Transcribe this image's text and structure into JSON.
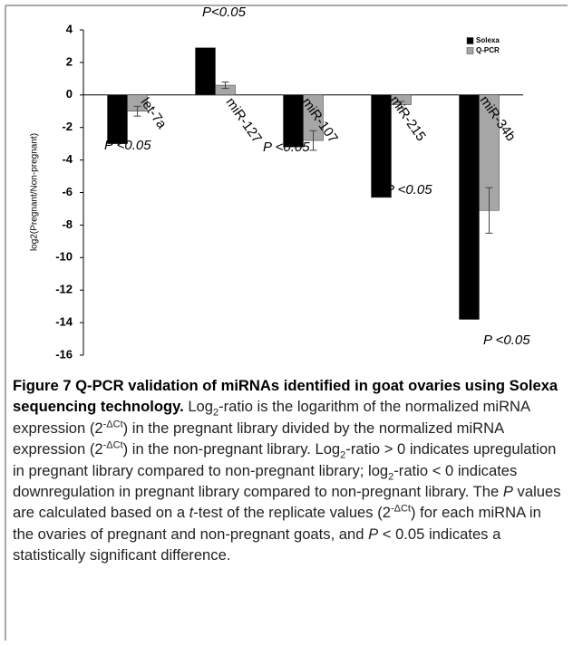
{
  "chart_data": {
    "type": "bar",
    "y_label": "log2(Pregnant/Non-pregnant)",
    "categories": [
      "let-7a",
      "miR-127",
      "miR-107",
      "miR-215",
      "miR-34b"
    ],
    "series": [
      {
        "name": "Solexa",
        "color": "#000000",
        "values": [
          -3,
          2.9,
          -3.2,
          -6.3,
          -13.8
        ]
      },
      {
        "name": "Q-PCR",
        "color": "#a6a6a6",
        "values": [
          -1.0,
          0.6,
          -2.8,
          -0.6,
          -7.1
        ],
        "errors": [
          0.3,
          0.2,
          0.6,
          0.2,
          1.4
        ]
      }
    ],
    "annotations": [
      "P <0.05",
      "P<0.05",
      "P <0.05",
      "P <0.05",
      "P <0.05"
    ],
    "ylim": [
      -16,
      4
    ],
    "yticks": [
      4,
      2,
      0,
      -2,
      -4,
      -6,
      -8,
      -10,
      -12,
      -14,
      -16
    ],
    "legend": "upper right"
  },
  "caption": [
    {
      "text": "Figure 7 Q-PCR validation of miRNAs identified in goat ovaries using Solexa sequencing technology.",
      "style": "b"
    },
    {
      "text": " Log"
    },
    {
      "text": "2",
      "style": "sub"
    },
    {
      "text": "-ratio is the logarithm of the normalized miRNA expression (2"
    },
    {
      "text": "-ΔCt",
      "style": "sup"
    },
    {
      "text": ") in the pregnant library divided by the normalized miRNA expression (2"
    },
    {
      "text": "-ΔCt",
      "style": "sup"
    },
    {
      "text": ") in the non-pregnant library. Log"
    },
    {
      "text": "2",
      "style": "sub"
    },
    {
      "text": "-ratio > 0 indicates upregulation in pregnant library compared to non-pregnant library; log"
    },
    {
      "text": "2",
      "style": "sub"
    },
    {
      "text": "-ratio < 0 indicates downregulation in pregnant library compared to non-pregnant library. The "
    },
    {
      "text": "P",
      "style": "i"
    },
    {
      "text": " values are calculated based on a "
    },
    {
      "text": "t",
      "style": "i"
    },
    {
      "text": "-test of the replicate values (2"
    },
    {
      "text": "-ΔCt",
      "style": "sup"
    },
    {
      "text": ") for each miRNA in the ovaries of pregnant and non-pregnant goats, and "
    },
    {
      "text": "P",
      "style": "i"
    },
    {
      "text": " < 0.05 indicates a statistically significant difference."
    }
  ]
}
